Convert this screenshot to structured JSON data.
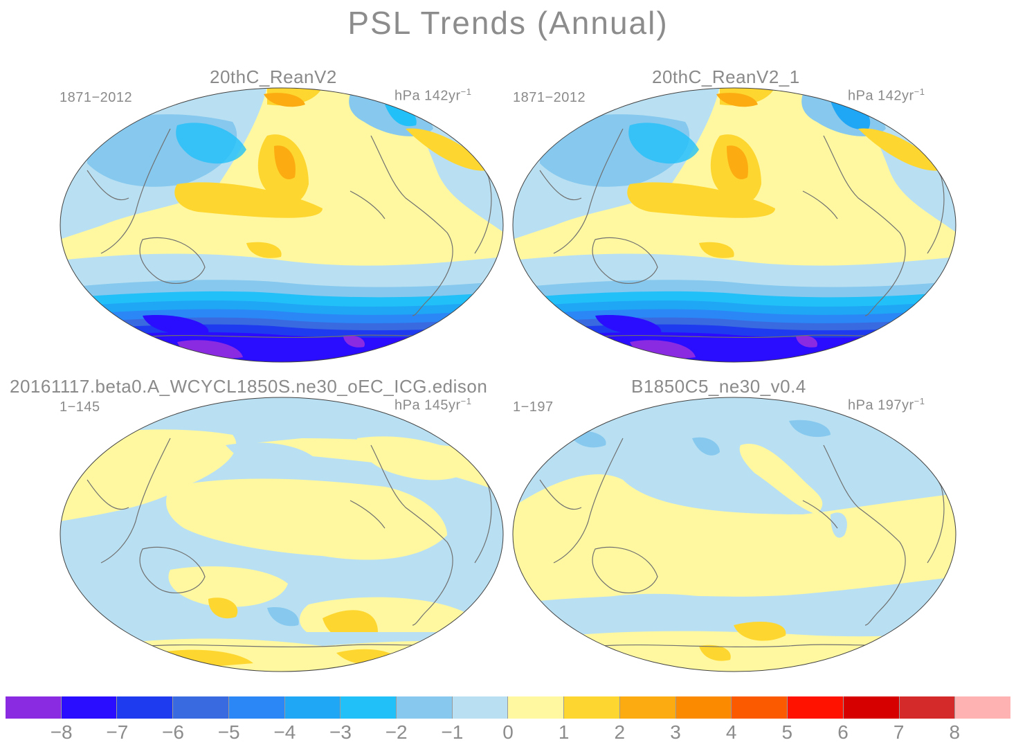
{
  "title": "PSL Trends (Annual)",
  "colors": {
    "m8": "#8a2be2",
    "m7": "#2a0cff",
    "m6": "#1e3bef",
    "m5": "#3a6ae0",
    "m4": "#2a87f5",
    "m3": "#1fa6f5",
    "m2": "#22c0f8",
    "m15": "#86c8ee",
    "m1": "#b9e0f2",
    "p1": "#fff8a0",
    "p2": "#fdd630",
    "p3": "#fcac10",
    "p4": "#fb8a00",
    "p5": "#fb5a00",
    "p6": "#ff1200",
    "p7": "#d60000",
    "p8": "#d42a2a",
    "p9": "#ffb2b2"
  },
  "panels": [
    {
      "id": "reanv2",
      "title": "20thC_ReanV2",
      "years": "1871−2012",
      "units": "hPa 142yr",
      "exp": "−1"
    },
    {
      "id": "reanv2_1",
      "title": "20thC_ReanV2_1",
      "years": "1871−2012",
      "units": "hPa 142yr",
      "exp": "−1"
    },
    {
      "id": "beta0",
      "title": "20161117.beta0.A_WCYCL1850S.ne30_oEC_ICG.edison",
      "years": "1−145",
      "units": "hPa 145yr",
      "exp": "−1"
    },
    {
      "id": "b1850",
      "title": "B1850C5_ne30_v0.4",
      "years": "1−197",
      "units": "hPa 197yr",
      "exp": "−1"
    }
  ],
  "colorbar": {
    "colors": [
      "#8a2be2",
      "#2a0cff",
      "#1e3bef",
      "#3a6ae0",
      "#2a87f5",
      "#1fa6f5",
      "#22c0f8",
      "#86c8ee",
      "#b9e0f2",
      "#fff8a0",
      "#fdd630",
      "#fcac10",
      "#fb8a00",
      "#fb5a00",
      "#ff1200",
      "#d60000",
      "#d42a2a",
      "#ffb2b2"
    ],
    "ticks": [
      "−8",
      "−7",
      "−6",
      "−5",
      "−4",
      "−3",
      "−2",
      "−1",
      "0",
      "1",
      "2",
      "3",
      "4",
      "5",
      "6",
      "7",
      "8"
    ]
  }
}
